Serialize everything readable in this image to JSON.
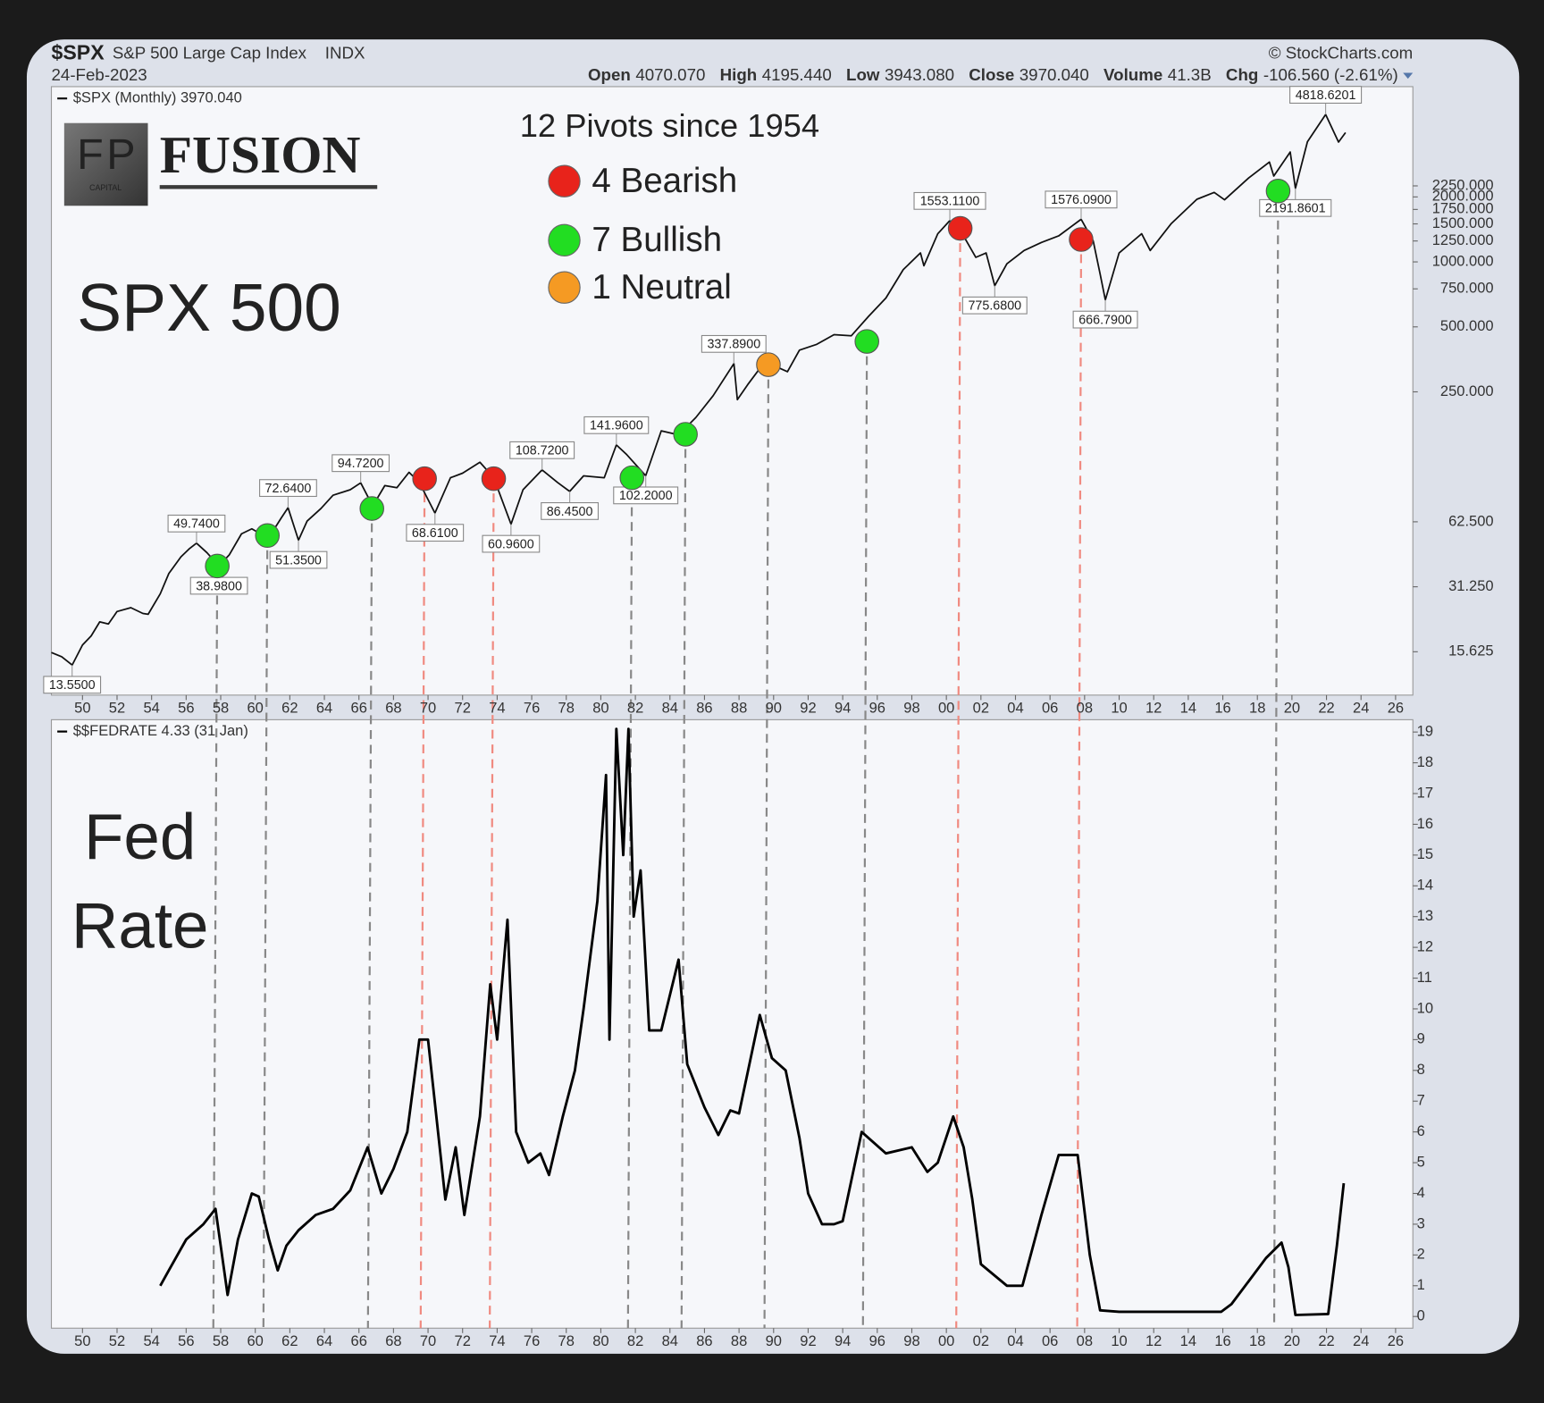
{
  "header": {
    "symbol": "$SPX",
    "name": "S&P 500 Large Cap Index",
    "exchange": "INDX",
    "date": "24-Feb-2023",
    "source": "© StockCharts.com",
    "quote": [
      [
        "Open",
        "4070.070"
      ],
      [
        "High",
        "4195.440"
      ],
      [
        "Low",
        "3943.080"
      ],
      [
        "Close",
        "3970.040"
      ],
      [
        "Volume",
        "41.3B"
      ],
      [
        "Chg",
        "-106.560 (-2.61%)"
      ]
    ]
  },
  "logo": {
    "mark_left": "F",
    "mark_right": "P",
    "mark_sub": "CAPITAL",
    "word": "FUSION"
  },
  "chart_data": [
    {
      "type": "line",
      "title": "12 Pivots since 1954",
      "label": "SPX 500",
      "log_scale": true,
      "grid": false,
      "xlim": [
        1948.2,
        2027
      ],
      "ylim": [
        9.84,
        6485
      ],
      "xticks": [
        {
          "value": 1950,
          "label": "50"
        },
        {
          "value": 1952,
          "label": "52"
        },
        {
          "value": 1954,
          "label": "54"
        },
        {
          "value": 1956,
          "label": "56"
        },
        {
          "value": 1958,
          "label": "58"
        },
        {
          "value": 1960,
          "label": "60"
        },
        {
          "value": 1962,
          "label": "62"
        },
        {
          "value": 1964,
          "label": "64"
        },
        {
          "value": 1966,
          "label": "66"
        },
        {
          "value": 1968,
          "label": "68"
        },
        {
          "value": 1970,
          "label": "70"
        },
        {
          "value": 1972,
          "label": "72"
        },
        {
          "value": 1974,
          "label": "74"
        },
        {
          "value": 1976,
          "label": "76"
        },
        {
          "value": 1978,
          "label": "78"
        },
        {
          "value": 1980,
          "label": "80"
        },
        {
          "value": 1982,
          "label": "82"
        },
        {
          "value": 1984,
          "label": "84"
        },
        {
          "value": 1986,
          "label": "86"
        },
        {
          "value": 1988,
          "label": "88"
        },
        {
          "value": 1990,
          "label": "90"
        },
        {
          "value": 1992,
          "label": "92"
        },
        {
          "value": 1994,
          "label": "94"
        },
        {
          "value": 1996,
          "label": "96"
        },
        {
          "value": 1998,
          "label": "98"
        },
        {
          "value": 2000,
          "label": "00"
        },
        {
          "value": 2002,
          "label": "02"
        },
        {
          "value": 2004,
          "label": "04"
        },
        {
          "value": 2006,
          "label": "06"
        },
        {
          "value": 2008,
          "label": "08"
        },
        {
          "value": 2010,
          "label": "10"
        },
        {
          "value": 2012,
          "label": "12"
        },
        {
          "value": 2014,
          "label": "14"
        },
        {
          "value": 2016,
          "label": "16"
        },
        {
          "value": 2018,
          "label": "18"
        },
        {
          "value": 2020,
          "label": "20"
        },
        {
          "value": 2022,
          "label": "22"
        },
        {
          "value": 2024,
          "label": "24"
        },
        {
          "value": 2026,
          "label": "26"
        }
      ],
      "yticks": [
        15.625,
        {
          "value": 31.25,
          "label": "31.250"
        },
        {
          "value": 62.5,
          "label": "62.500"
        },
        {
          "value": 250,
          "label": "250.000"
        },
        {
          "value": 500,
          "label": "500.000"
        },
        {
          "value": 750,
          "label": "750.000"
        },
        {
          "value": 1000,
          "label": "1000.000"
        },
        {
          "value": 1250,
          "label": "1250.000"
        },
        {
          "value": 1500,
          "label": "1500.000"
        },
        {
          "value": 1750,
          "label": "1750.000"
        },
        {
          "value": 2000,
          "label": "2000.000"
        },
        {
          "value": 2250,
          "label": "2250.000"
        }
      ],
      "series": [
        {
          "name": "$SPX (Monthly) 3970.040",
          "color": "#111111",
          "x": [
            1948.2,
            1948.8,
            1949.4,
            1950,
            1950.5,
            1951,
            1951.5,
            1952,
            1952.8,
            1953.5,
            1953.8,
            1954.5,
            1955,
            1955.7,
            1956.2,
            1956.6,
            1957.2,
            1957.9,
            1958.5,
            1959.2,
            1959.8,
            1960.3,
            1960.8,
            1961.5,
            1961.9,
            1962.5,
            1963,
            1963.8,
            1964.5,
            1965.5,
            1966.1,
            1966.8,
            1967.5,
            1968.2,
            1968.9,
            1969.5,
            1970.4,
            1971.3,
            1972,
            1973,
            1973.8,
            1974.8,
            1975.5,
            1976.6,
            1977.5,
            1978.2,
            1979,
            1980.2,
            1980.9,
            1981.5,
            1982.6,
            1983.5,
            1984.5,
            1985.5,
            1986.5,
            1987.7,
            1987.9,
            1988.5,
            1989.5,
            1990.8,
            1991.5,
            1992.5,
            1993.5,
            1994.5,
            1995.5,
            1996.5,
            1997.5,
            1998.5,
            1998.7,
            1999.5,
            2000.2,
            2000.7,
            2001.7,
            2002.3,
            2002.8,
            2003.5,
            2004.5,
            2005.5,
            2006.5,
            2007.8,
            2008.5,
            2008.9,
            2009.2,
            2010,
            2011.3,
            2011.8,
            2013,
            2014.5,
            2015.5,
            2016.1,
            2017.5,
            2018.7,
            2018.95,
            2019.9,
            2020.2,
            2020.9,
            2021.95,
            2022.7,
            2023.1
          ],
          "values": [
            15.5,
            14.8,
            13.55,
            16.8,
            18.5,
            21.5,
            21,
            24,
            25,
            23.5,
            23.3,
            29,
            36,
            43,
            47,
            49.74,
            45,
            38.98,
            44,
            55,
            58,
            55,
            53,
            65,
            72.64,
            51.35,
            63,
            72,
            83,
            88,
            94.72,
            74,
            92,
            90,
            106,
            95,
            68.61,
            100,
            105,
            118,
            100,
            60.96,
            88,
            108.72,
            95,
            86.45,
            102,
            100,
            141.96,
            128,
            102.2,
            165,
            158,
            190,
            240,
            337.89,
            230,
            270,
            345,
            310,
            390,
            415,
            460,
            455,
            560,
            680,
            920,
            1100,
            960,
            1350,
            1553.11,
            1450,
            1050,
            1100,
            775.68,
            980,
            1130,
            1230,
            1320,
            1576.09,
            1250,
            880,
            666.79,
            1100,
            1350,
            1130,
            1500,
            1950,
            2100,
            1940,
            2450,
            2900,
            2500,
            3230,
            2191.86,
            3600,
            4818.62,
            3590,
            3970.04
          ]
        }
      ],
      "annotations": {
        "x": [
          1949.4,
          1956.6,
          1957.9,
          1961.9,
          1962.5,
          1966.1,
          1970.4,
          1974.8,
          1976.6,
          1978.2,
          1980.9,
          1982.6,
          1987.7,
          2000.2,
          2002.8,
          2007.8,
          2009.2,
          2020.2,
          2021.95
        ],
        "values": [
          13.55,
          49.74,
          38.98,
          72.64,
          51.35,
          94.72,
          68.61,
          60.96,
          108.72,
          86.45,
          141.96,
          102.2,
          337.89,
          1553.11,
          775.68,
          1576.09,
          666.79,
          2191.8601,
          4818.6201
        ],
        "value_labels": [
          "13.5500",
          "49.7400",
          "38.9800",
          "72.6400",
          "51.3500",
          "94.7200",
          "68.6100",
          "60.9600",
          "108.7200",
          "86.4500",
          "141.9600",
          "102.2000",
          "337.8900",
          "1553.1100",
          "775.6800",
          "1576.0900",
          "666.7900",
          "2191.8601",
          "4818.6201"
        ]
      },
      "markers": [
        {
          "name": "4 Bearish",
          "color": "#e8231b",
          "guide_color": "#f08a80",
          "x": [
            1969.8,
            1973.8,
            2000.8,
            2007.8
          ],
          "values": [
            99,
            99,
            1430,
            1270
          ]
        },
        {
          "name": "7 Bullish",
          "color": "#22dd22",
          "guide_color": "#888888",
          "x": [
            1957.8,
            1960.7,
            1966.75,
            1981.8,
            1984.9,
            1995.4,
            2019.2
          ],
          "values": [
            39,
            54,
            72,
            100,
            159,
            428,
            2130
          ]
        },
        {
          "name": "1 Neutral",
          "color": "#f59a23",
          "guide_color": "#888888",
          "x": [
            1989.7
          ],
          "values": [
            334
          ]
        }
      ]
    },
    {
      "type": "line",
      "label": [
        "Fed",
        "Rate"
      ],
      "log_scale": false,
      "grid": false,
      "xlim": [
        1948.2,
        2027
      ],
      "ylim": [
        -0.38,
        19.4
      ],
      "xticks": [
        {
          "value": 1950,
          "label": "50"
        },
        {
          "value": 1952,
          "label": "52"
        },
        {
          "value": 1954,
          "label": "54"
        },
        {
          "value": 1956,
          "label": "56"
        },
        {
          "value": 1958,
          "label": "58"
        },
        {
          "value": 1960,
          "label": "60"
        },
        {
          "value": 1962,
          "label": "62"
        },
        {
          "value": 1964,
          "label": "64"
        },
        {
          "value": 1966,
          "label": "66"
        },
        {
          "value": 1968,
          "label": "68"
        },
        {
          "value": 1970,
          "label": "70"
        },
        {
          "value": 1972,
          "label": "72"
        },
        {
          "value": 1974,
          "label": "74"
        },
        {
          "value": 1976,
          "label": "76"
        },
        {
          "value": 1978,
          "label": "78"
        },
        {
          "value": 1980,
          "label": "80"
        },
        {
          "value": 1982,
          "label": "82"
        },
        {
          "value": 1984,
          "label": "84"
        },
        {
          "value": 1986,
          "label": "86"
        },
        {
          "value": 1988,
          "label": "88"
        },
        {
          "value": 1990,
          "label": "90"
        },
        {
          "value": 1992,
          "label": "92"
        },
        {
          "value": 1994,
          "label": "94"
        },
        {
          "value": 1996,
          "label": "96"
        },
        {
          "value": 1998,
          "label": "98"
        },
        {
          "value": 2000,
          "label": "00"
        },
        {
          "value": 2002,
          "label": "02"
        },
        {
          "value": 2004,
          "label": "04"
        },
        {
          "value": 2006,
          "label": "06"
        },
        {
          "value": 2008,
          "label": "08"
        },
        {
          "value": 2010,
          "label": "10"
        },
        {
          "value": 2012,
          "label": "12"
        },
        {
          "value": 2014,
          "label": "14"
        },
        {
          "value": 2016,
          "label": "16"
        },
        {
          "value": 2018,
          "label": "18"
        },
        {
          "value": 2020,
          "label": "20"
        },
        {
          "value": 2022,
          "label": "22"
        },
        {
          "value": 2024,
          "label": "24"
        },
        {
          "value": 2026,
          "label": "26"
        }
      ],
      "yticks": [
        0,
        1,
        2,
        3,
        4,
        5,
        6,
        7,
        8,
        9,
        10,
        11,
        12,
        13,
        14,
        15,
        16,
        17,
        18,
        19
      ],
      "series": [
        {
          "name": "$$FEDRATE 4.33 (31 Jan)",
          "color": "#000000",
          "x": [
            1954.5,
            1955,
            1955.5,
            1956,
            1957,
            1957.7,
            1958.2,
            1958.4,
            1959,
            1959.8,
            1960.2,
            1960.8,
            1961.3,
            1961.8,
            1962.5,
            1963.5,
            1964.5,
            1965.5,
            1966.5,
            1967.3,
            1968,
            1968.8,
            1969.5,
            1970,
            1971,
            1971.6,
            1972.1,
            1973,
            1973.6,
            1974,
            1974.6,
            1975.1,
            1975.8,
            1976.5,
            1977,
            1977.8,
            1978.5,
            1979,
            1979.8,
            1980.3,
            1980.5,
            1980.9,
            1981.3,
            1981.6,
            1981.9,
            1982.3,
            1982.8,
            1983.5,
            1984.5,
            1985,
            1986,
            1986.8,
            1987.5,
            1988,
            1989.2,
            1989.9,
            1990.7,
            1991.5,
            1992,
            1992.8,
            1993.5,
            1994,
            1995.1,
            1995.9,
            1996.5,
            1998,
            1998.9,
            1999.5,
            2000.4,
            2001,
            2001.5,
            2002,
            2003.5,
            2004.4,
            2005.5,
            2006.5,
            2007.6,
            2008.3,
            2008.9,
            2010,
            2012,
            2015.9,
            2016.5,
            2017.5,
            2018.5,
            2019.4,
            2019.8,
            2020.2,
            2022.1,
            2022.6,
            2023.0
          ],
          "values": [
            1.0,
            1.5,
            2.0,
            2.5,
            3.0,
            3.5,
            1.5,
            0.7,
            2.5,
            4.0,
            3.9,
            2.5,
            1.5,
            2.3,
            2.8,
            3.3,
            3.5,
            4.1,
            5.5,
            4.0,
            4.8,
            6.0,
            9.0,
            9.0,
            3.8,
            5.5,
            3.3,
            6.5,
            10.8,
            9.0,
            12.9,
            6.0,
            5.0,
            5.3,
            4.6,
            6.5,
            8.0,
            10.0,
            13.5,
            17.6,
            9.0,
            19.1,
            15.0,
            19.1,
            13.0,
            14.5,
            9.3,
            9.3,
            11.6,
            8.2,
            6.8,
            5.9,
            6.7,
            6.6,
            9.8,
            8.4,
            8.0,
            5.8,
            4.0,
            3.0,
            3.0,
            3.1,
            6.0,
            5.6,
            5.3,
            5.5,
            4.7,
            5.0,
            6.5,
            5.5,
            3.8,
            1.7,
            1.0,
            1.0,
            3.3,
            5.25,
            5.25,
            2.0,
            0.2,
            0.15,
            0.15,
            0.15,
            0.4,
            1.15,
            1.9,
            2.4,
            1.6,
            0.05,
            0.08,
            2.3,
            4.33
          ]
        }
      ]
    }
  ]
}
